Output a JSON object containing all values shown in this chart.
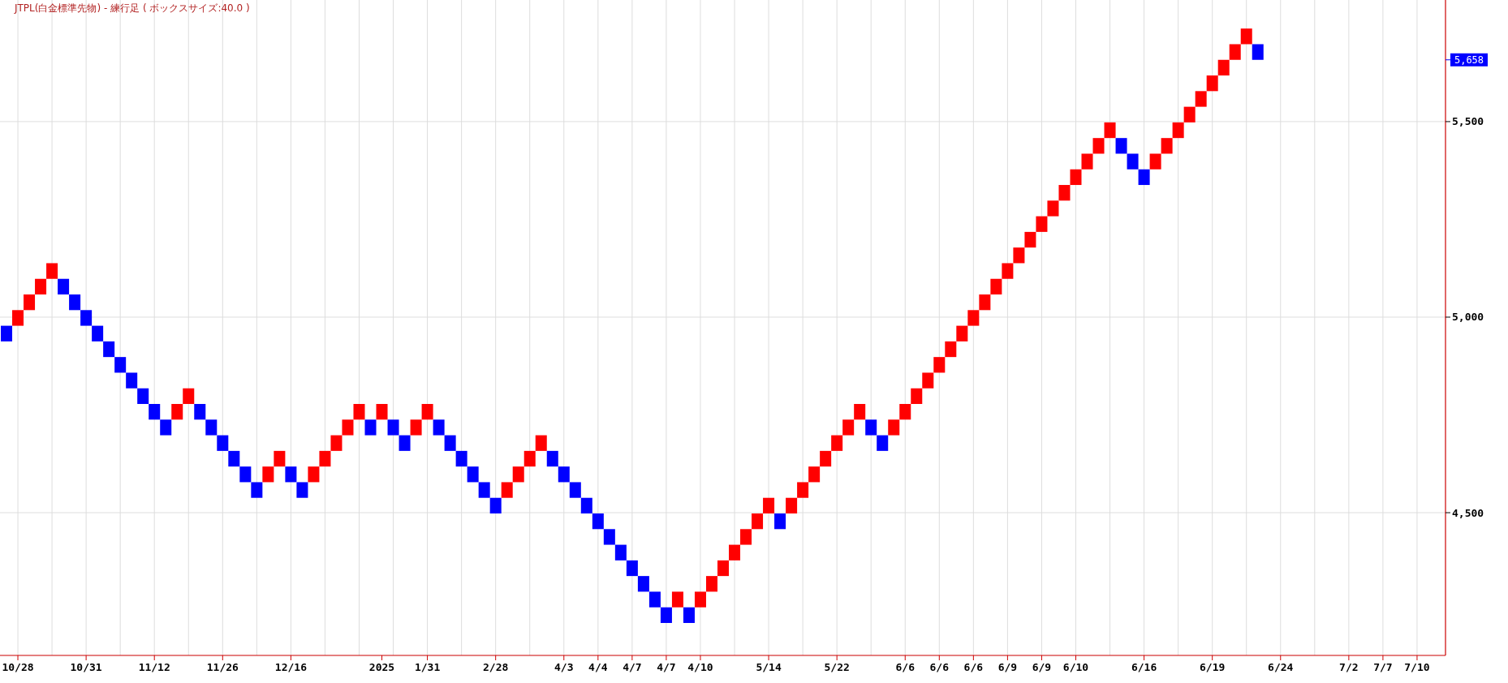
{
  "chart_data": {
    "type": "candlestick",
    "title": "JTPL(白金標準先物) - 練行足 ( ボックスサイズ:40.0 )",
    "categories": [
      null,
      "10/28",
      null,
      null,
      null,
      null,
      null,
      "10/31",
      null,
      null,
      null,
      null,
      null,
      "11/12",
      null,
      null,
      null,
      null,
      null,
      "11/26",
      null,
      null,
      null,
      null,
      null,
      "12/16",
      null,
      null,
      null,
      null,
      null,
      null,
      null,
      "2025",
      null,
      null,
      null,
      "1/31",
      null,
      null,
      null,
      null,
      null,
      "2/28",
      null,
      null,
      null,
      null,
      null,
      "4/3",
      null,
      null,
      "4/4",
      null,
      null,
      "4/7",
      null,
      null,
      "4/7",
      null,
      null,
      "4/10",
      null,
      null,
      null,
      null,
      null,
      "5/14",
      null,
      null,
      null,
      null,
      null,
      "5/22",
      null,
      null,
      null,
      null,
      null,
      "6/6",
      null,
      null,
      "6/6",
      null,
      null,
      "6/6",
      null,
      null,
      "6/9",
      null,
      null,
      "6/9",
      null,
      null,
      "6/10",
      null,
      null,
      null,
      null,
      null,
      "6/16",
      null,
      null,
      null,
      null,
      null,
      "6/19",
      null,
      null,
      null,
      null,
      null,
      "6/24",
      null,
      null,
      null,
      null,
      null,
      "7/2",
      null,
      null,
      "7/7",
      null,
      null,
      "7/10"
    ],
    "ohlc": [
      [
        4978,
        4978,
        4938,
        4938
      ],
      [
        4978,
        5018,
        4978,
        5018
      ],
      [
        5018,
        5058,
        5018,
        5058
      ],
      [
        5058,
        5098,
        5058,
        5098
      ],
      [
        5098,
        5138,
        5098,
        5138
      ],
      [
        5098,
        5098,
        5058,
        5058
      ],
      [
        5058,
        5058,
        5018,
        5018
      ],
      [
        5018,
        5018,
        4978,
        4978
      ],
      [
        4978,
        4978,
        4938,
        4938
      ],
      [
        4938,
        4938,
        4898,
        4898
      ],
      [
        4898,
        4898,
        4858,
        4858
      ],
      [
        4858,
        4858,
        4818,
        4818
      ],
      [
        4818,
        4818,
        4778,
        4778
      ],
      [
        4778,
        4778,
        4738,
        4738
      ],
      [
        4738,
        4738,
        4698,
        4698
      ],
      [
        4738,
        4778,
        4738,
        4778
      ],
      [
        4778,
        4818,
        4778,
        4818
      ],
      [
        4778,
        4778,
        4738,
        4738
      ],
      [
        4738,
        4738,
        4698,
        4698
      ],
      [
        4698,
        4698,
        4658,
        4658
      ],
      [
        4658,
        4658,
        4618,
        4618
      ],
      [
        4618,
        4618,
        4578,
        4578
      ],
      [
        4578,
        4578,
        4538,
        4538
      ],
      [
        4578,
        4618,
        4578,
        4618
      ],
      [
        4618,
        4658,
        4618,
        4658
      ],
      [
        4618,
        4618,
        4578,
        4578
      ],
      [
        4578,
        4578,
        4538,
        4538
      ],
      [
        4578,
        4618,
        4578,
        4618
      ],
      [
        4618,
        4658,
        4618,
        4658
      ],
      [
        4658,
        4698,
        4658,
        4698
      ],
      [
        4698,
        4738,
        4698,
        4738
      ],
      [
        4738,
        4778,
        4738,
        4778
      ],
      [
        4738,
        4738,
        4698,
        4698
      ],
      [
        4738,
        4778,
        4738,
        4778
      ],
      [
        4738,
        4738,
        4698,
        4698
      ],
      [
        4698,
        4698,
        4658,
        4658
      ],
      [
        4698,
        4738,
        4698,
        4738
      ],
      [
        4738,
        4778,
        4738,
        4778
      ],
      [
        4738,
        4738,
        4698,
        4698
      ],
      [
        4698,
        4698,
        4658,
        4658
      ],
      [
        4658,
        4658,
        4618,
        4618
      ],
      [
        4618,
        4618,
        4578,
        4578
      ],
      [
        4578,
        4578,
        4538,
        4538
      ],
      [
        4538,
        4538,
        4498,
        4498
      ],
      [
        4538,
        4578,
        4538,
        4578
      ],
      [
        4578,
        4618,
        4578,
        4618
      ],
      [
        4618,
        4658,
        4618,
        4658
      ],
      [
        4658,
        4698,
        4658,
        4698
      ],
      [
        4658,
        4658,
        4618,
        4618
      ],
      [
        4618,
        4618,
        4578,
        4578
      ],
      [
        4578,
        4578,
        4538,
        4538
      ],
      [
        4538,
        4538,
        4498,
        4498
      ],
      [
        4498,
        4498,
        4458,
        4458
      ],
      [
        4458,
        4458,
        4418,
        4418
      ],
      [
        4418,
        4418,
        4378,
        4378
      ],
      [
        4378,
        4378,
        4338,
        4338
      ],
      [
        4338,
        4338,
        4298,
        4298
      ],
      [
        4298,
        4298,
        4258,
        4258
      ],
      [
        4258,
        4258,
        4218,
        4218
      ],
      [
        4258,
        4298,
        4258,
        4298
      ],
      [
        4258,
        4258,
        4218,
        4218
      ],
      [
        4258,
        4298,
        4258,
        4298
      ],
      [
        4298,
        4338,
        4298,
        4338
      ],
      [
        4338,
        4378,
        4338,
        4378
      ],
      [
        4378,
        4418,
        4378,
        4418
      ],
      [
        4418,
        4458,
        4418,
        4458
      ],
      [
        4458,
        4498,
        4458,
        4498
      ],
      [
        4498,
        4538,
        4498,
        4538
      ],
      [
        4498,
        4498,
        4458,
        4458
      ],
      [
        4498,
        4538,
        4498,
        4538
      ],
      [
        4538,
        4578,
        4538,
        4578
      ],
      [
        4578,
        4618,
        4578,
        4618
      ],
      [
        4618,
        4658,
        4618,
        4658
      ],
      [
        4658,
        4698,
        4658,
        4698
      ],
      [
        4698,
        4738,
        4698,
        4738
      ],
      [
        4738,
        4778,
        4738,
        4778
      ],
      [
        4738,
        4738,
        4698,
        4698
      ],
      [
        4698,
        4698,
        4658,
        4658
      ],
      [
        4698,
        4738,
        4698,
        4738
      ],
      [
        4738,
        4778,
        4738,
        4778
      ],
      [
        4778,
        4818,
        4778,
        4818
      ],
      [
        4818,
        4858,
        4818,
        4858
      ],
      [
        4858,
        4898,
        4858,
        4898
      ],
      [
        4898,
        4938,
        4898,
        4938
      ],
      [
        4938,
        4978,
        4938,
        4978
      ],
      [
        4978,
        5018,
        4978,
        5018
      ],
      [
        5018,
        5058,
        5018,
        5058
      ],
      [
        5058,
        5098,
        5058,
        5098
      ],
      [
        5098,
        5138,
        5098,
        5138
      ],
      [
        5138,
        5178,
        5138,
        5178
      ],
      [
        5178,
        5218,
        5178,
        5218
      ],
      [
        5218,
        5258,
        5218,
        5258
      ],
      [
        5258,
        5298,
        5258,
        5298
      ],
      [
        5298,
        5338,
        5298,
        5338
      ],
      [
        5338,
        5378,
        5338,
        5378
      ],
      [
        5378,
        5418,
        5378,
        5418
      ],
      [
        5418,
        5458,
        5418,
        5458
      ],
      [
        5458,
        5498,
        5458,
        5498
      ],
      [
        5458,
        5458,
        5418,
        5418
      ],
      [
        5418,
        5418,
        5378,
        5378
      ],
      [
        5378,
        5378,
        5338,
        5338
      ],
      [
        5378,
        5418,
        5378,
        5418
      ],
      [
        5418,
        5458,
        5418,
        5458
      ],
      [
        5458,
        5498,
        5458,
        5498
      ],
      [
        5498,
        5538,
        5498,
        5538
      ],
      [
        5538,
        5578,
        5538,
        5578
      ],
      [
        5578,
        5618,
        5578,
        5618
      ],
      [
        5618,
        5658,
        5618,
        5658
      ],
      [
        5658,
        5698,
        5658,
        5698
      ],
      [
        5698,
        5738,
        5698,
        5738
      ],
      [
        5698,
        5698,
        5658,
        5658
      ],
      null,
      null,
      null,
      null,
      null,
      null,
      null,
      null,
      null,
      null,
      null,
      null,
      null,
      null
    ],
    "colors": [
      "#0000ff",
      "#ff0000",
      "#ff0000",
      "#ff0000",
      "#ff0000",
      "#0000ff",
      "#0000ff",
      "#0000ff",
      "#0000ff",
      "#0000ff",
      "#0000ff",
      "#0000ff",
      "#0000ff",
      "#0000ff",
      "#0000ff",
      "#ff0000",
      "#ff0000",
      "#0000ff",
      "#0000ff",
      "#0000ff",
      "#0000ff",
      "#0000ff",
      "#0000ff",
      "#ff0000",
      "#ff0000",
      "#0000ff",
      "#0000ff",
      "#ff0000",
      "#ff0000",
      "#ff0000",
      "#ff0000",
      "#ff0000",
      "#0000ff",
      "#ff0000",
      "#0000ff",
      "#0000ff",
      "#ff0000",
      "#ff0000",
      "#0000ff",
      "#0000ff",
      "#0000ff",
      "#0000ff",
      "#0000ff",
      "#0000ff",
      "#ff0000",
      "#ff0000",
      "#ff0000",
      "#ff0000",
      "#0000ff",
      "#0000ff",
      "#0000ff",
      "#0000ff",
      "#0000ff",
      "#0000ff",
      "#0000ff",
      "#0000ff",
      "#0000ff",
      "#0000ff",
      "#0000ff",
      "#ff0000",
      "#0000ff",
      "#ff0000",
      "#ff0000",
      "#ff0000",
      "#ff0000",
      "#ff0000",
      "#ff0000",
      "#ff0000",
      "#0000ff",
      "#ff0000",
      "#ff0000",
      "#ff0000",
      "#ff0000",
      "#ff0000",
      "#ff0000",
      "#ff0000",
      "#0000ff",
      "#0000ff",
      "#ff0000",
      "#ff0000",
      "#ff0000",
      "#ff0000",
      "#ff0000",
      "#ff0000",
      "#ff0000",
      "#ff0000",
      "#ff0000",
      "#ff0000",
      "#ff0000",
      "#ff0000",
      "#ff0000",
      "#ff0000",
      "#ff0000",
      "#ff0000",
      "#ff0000",
      "#ff0000",
      "#ff0000",
      "#ff0000",
      "#0000ff",
      "#0000ff",
      "#0000ff",
      "#ff0000",
      "#ff0000",
      "#ff0000",
      "#ff0000",
      "#ff0000",
      "#ff0000",
      "#ff0000",
      "#ff0000",
      "#ff0000",
      "#0000ff",
      null,
      null,
      null,
      null,
      null,
      null,
      null,
      null,
      null,
      null,
      null,
      null,
      null,
      null
    ],
    "ylim": [
      4135,
      5811
    ],
    "yticks": [
      {
        "value": 4500,
        "label": "4,500"
      },
      {
        "value": 5000,
        "label": "5,000"
      },
      {
        "value": 5500,
        "label": "5,500"
      }
    ],
    "annotations": [
      "5,658"
    ],
    "grid": true
  }
}
